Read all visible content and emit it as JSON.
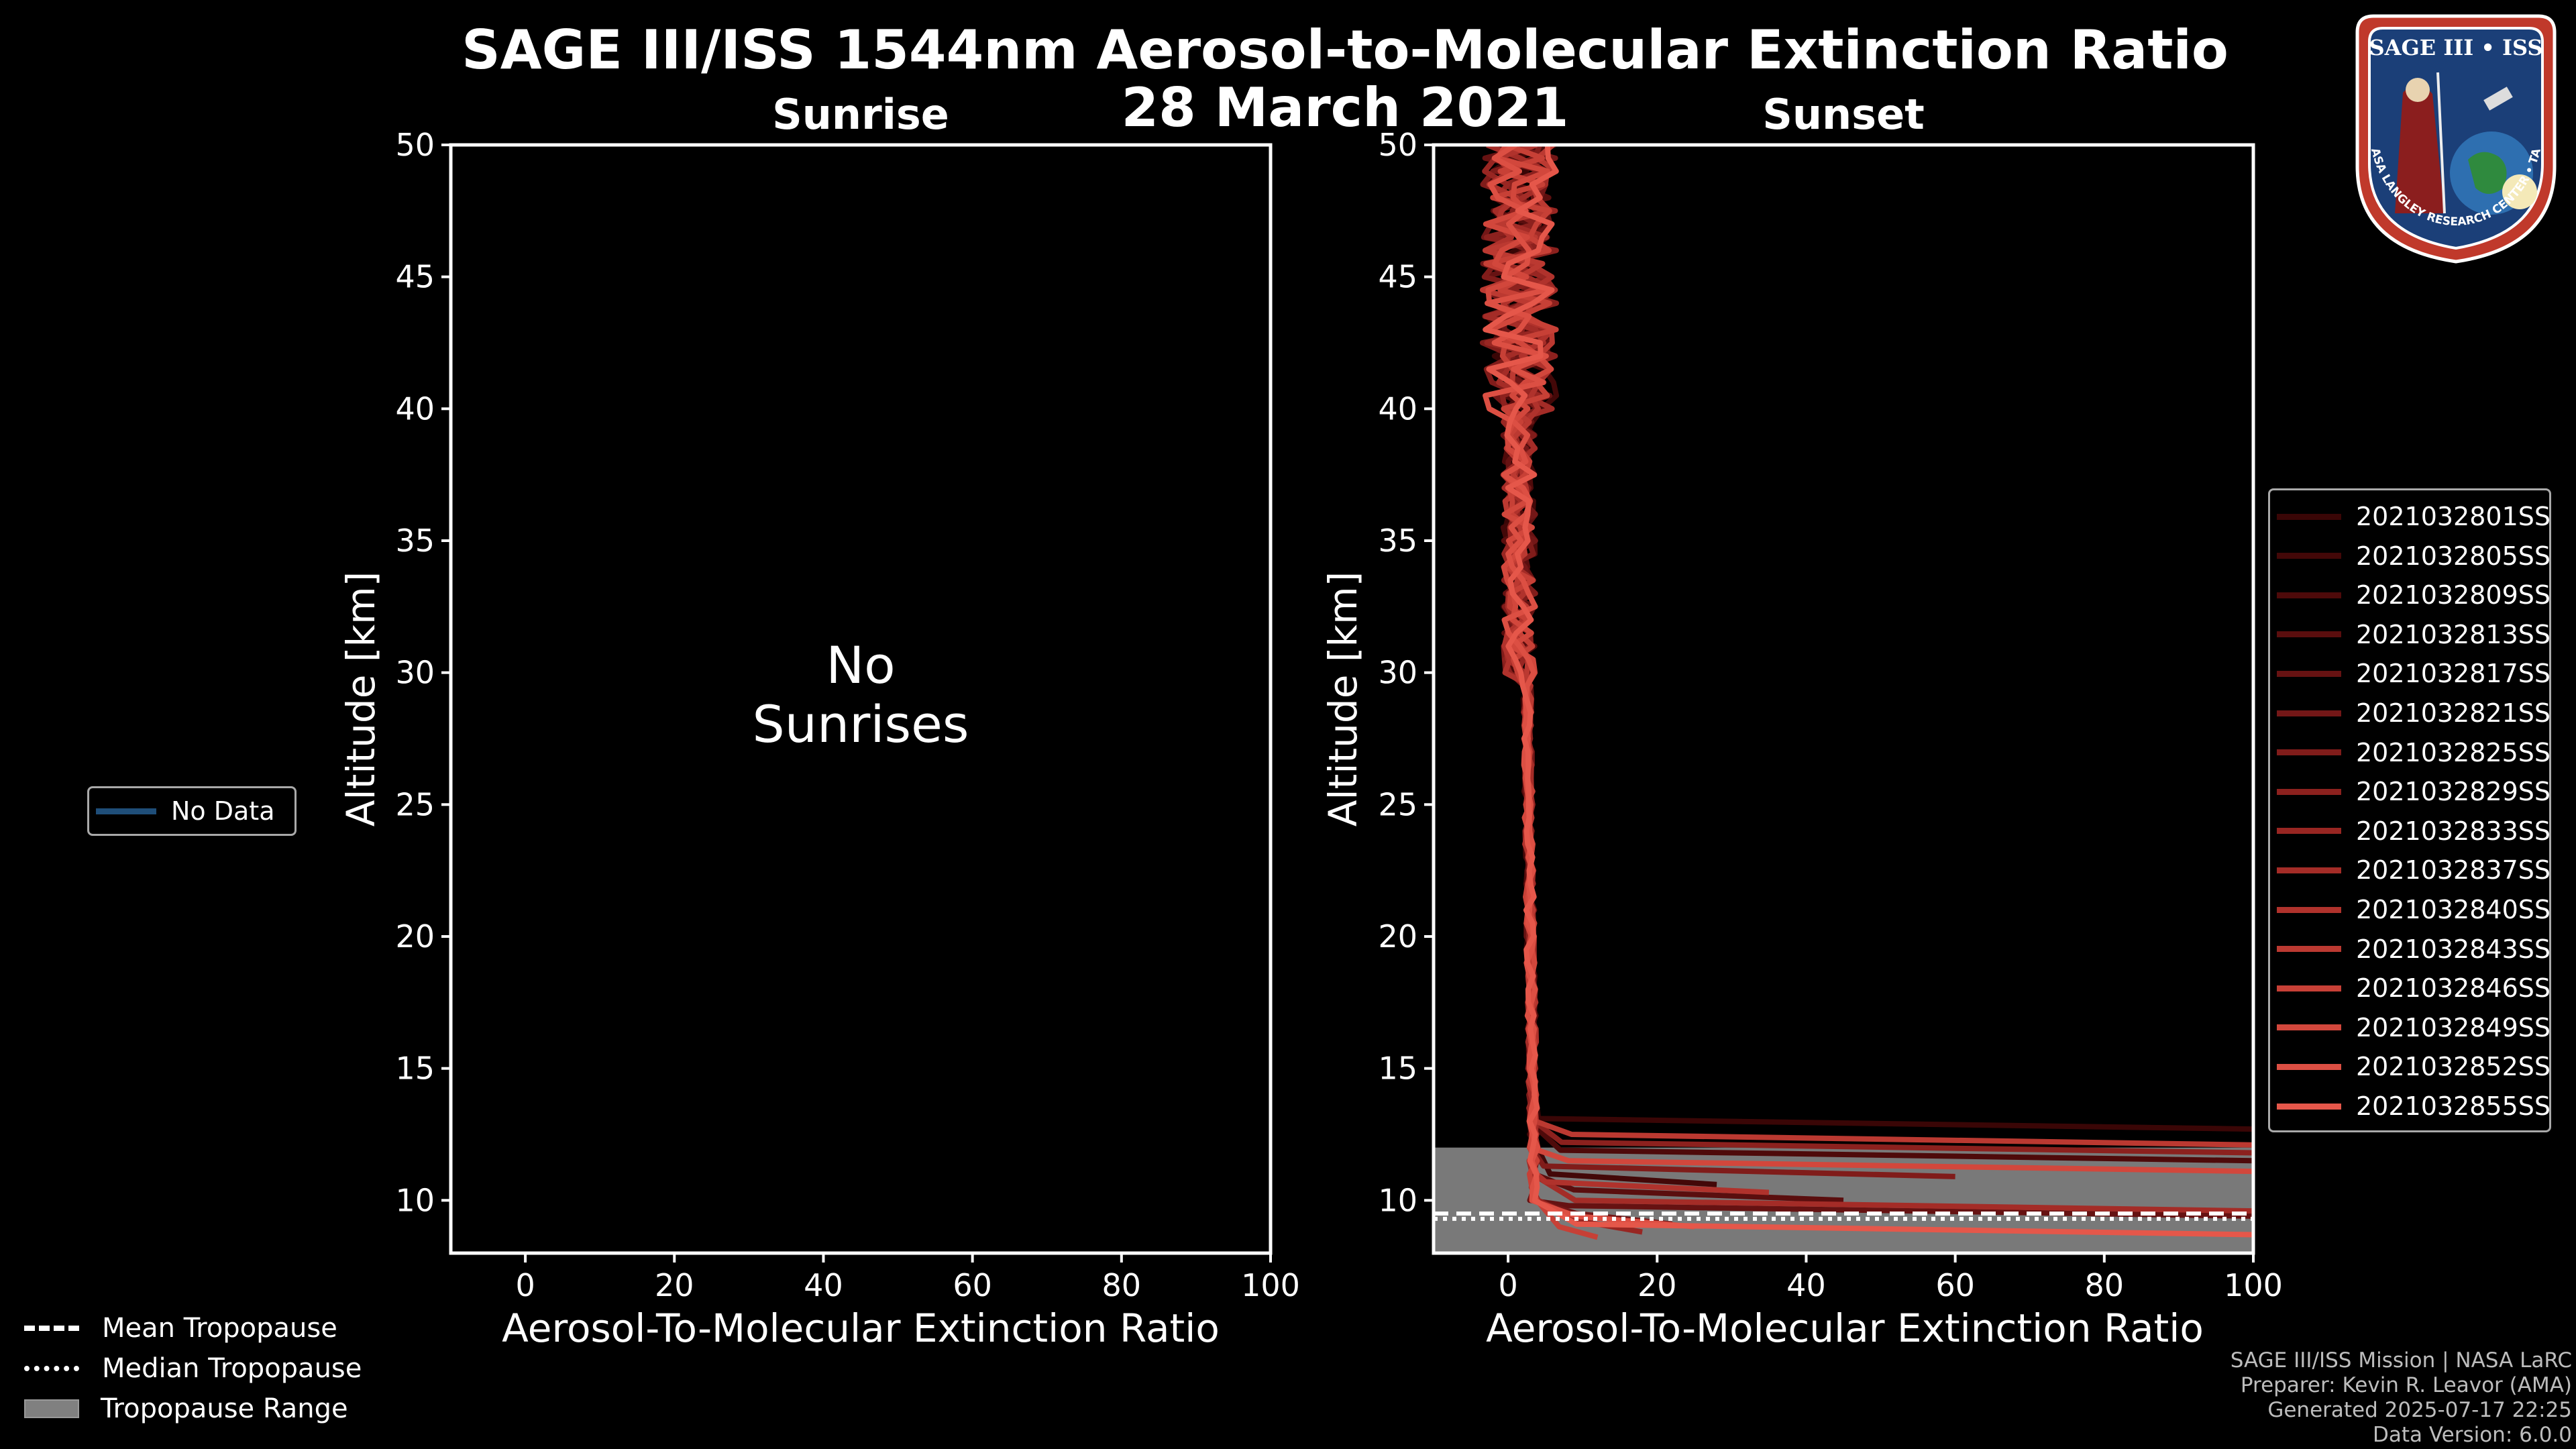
{
  "title_line1": "SAGE III/ISS 1544nm Aerosol-to-Molecular Extinction Ratio",
  "title_line2": "28 March 2021",
  "panels": {
    "sunrise": {
      "title": "Sunrise",
      "message_line1": "No",
      "message_line2": "Sunrises"
    },
    "sunset": {
      "title": "Sunset"
    }
  },
  "left_legend": {
    "label": "No Data",
    "color": "#1f4e79"
  },
  "tropopause_legend": {
    "mean": "Mean Tropopause",
    "median": "Median Tropopause",
    "range": "Tropopause Range"
  },
  "footer": {
    "line1": "SAGE III/ISS Mission | NASA LaRC",
    "line2": "Preparer: Kevin R. Leavor (AMA)",
    "line3": "Generated 2025-07-17 22:25",
    "line4": "Data Version: 6.0.0"
  },
  "logo": {
    "text_top": "SAGE III • ISS",
    "text_ring": "BALL • NASA LANGLEY RESEARCH CENTER • TAS-I • ESA"
  },
  "chart_data": [
    {
      "type": "line",
      "panel": "sunrise",
      "title": "Sunrise",
      "xlabel": "Aerosol-To-Molecular Extinction Ratio",
      "ylabel": "Altitude [km]",
      "xlim": [
        -10,
        100
      ],
      "ylim": [
        8,
        50
      ],
      "xticks": [
        0,
        20,
        40,
        60,
        80,
        100
      ],
      "yticks": [
        10,
        15,
        20,
        25,
        30,
        35,
        40,
        45,
        50
      ],
      "series": []
    },
    {
      "type": "line",
      "panel": "sunset",
      "title": "Sunset",
      "xlabel": "Aerosol-To-Molecular Extinction Ratio",
      "ylabel": "Altitude [km]",
      "xlim": [
        -10,
        100
      ],
      "ylim": [
        8,
        50
      ],
      "xticks": [
        0,
        20,
        40,
        60,
        80,
        100
      ],
      "yticks": [
        10,
        15,
        20,
        25,
        30,
        35,
        40,
        45,
        50
      ],
      "tropopause": {
        "range": [
          8,
          12
        ],
        "mean": 9.5,
        "median": 9.3
      },
      "series": [
        {
          "name": "2021032801SS",
          "color": "#3a0606"
        },
        {
          "name": "2021032805SS",
          "color": "#430808"
        },
        {
          "name": "2021032809SS",
          "color": "#4e0a0a"
        },
        {
          "name": "2021032813SS",
          "color": "#5a0e0e"
        },
        {
          "name": "2021032817SS",
          "color": "#661212"
        },
        {
          "name": "2021032821SS",
          "color": "#731717"
        },
        {
          "name": "2021032825SS",
          "color": "#801c1a"
        },
        {
          "name": "2021032829SS",
          "color": "#8c211e"
        },
        {
          "name": "2021032833SS",
          "color": "#982622"
        },
        {
          "name": "2021032837SS",
          "color": "#a42c27"
        },
        {
          "name": "2021032840SS",
          "color": "#b0322c"
        },
        {
          "name": "2021032843SS",
          "color": "#bb3931"
        },
        {
          "name": "2021032846SS",
          "color": "#c74036"
        },
        {
          "name": "2021032849SS",
          "color": "#d2473c"
        },
        {
          "name": "2021032852SS",
          "color": "#dc4f43"
        },
        {
          "name": "2021032855SS",
          "color": "#e5574a"
        }
      ]
    }
  ]
}
